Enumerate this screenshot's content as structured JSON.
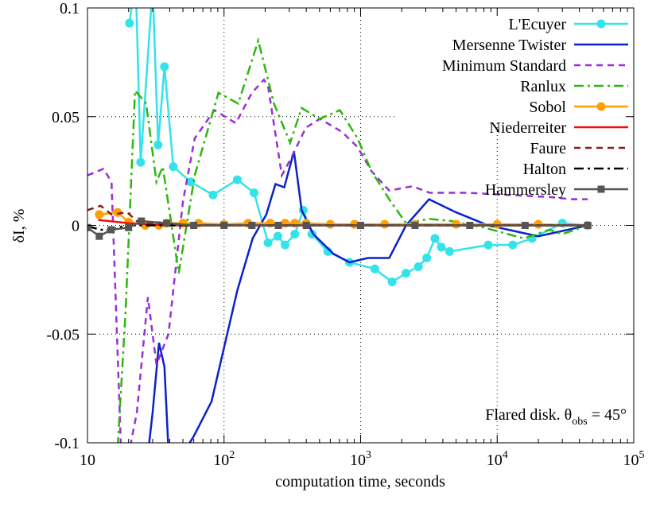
{
  "chart_data": {
    "type": "line",
    "xlabel": "computation time, seconds",
    "ylabel": "δI, %",
    "annotation": {
      "text": "Flared disk. θ",
      "subscript": "obs",
      "suffix": " = 45°"
    },
    "xscale": "log",
    "grid": true,
    "legend": "top-right",
    "xlim": [
      10,
      100000
    ],
    "xticks": [
      10,
      {
        "value": 100,
        "label": "10",
        "exponent": "2"
      },
      {
        "value": 1000,
        "label": "10",
        "exponent": "3"
      },
      {
        "value": 10000,
        "label": "10",
        "exponent": "4"
      },
      {
        "value": 100000,
        "label": "10",
        "exponent": "5"
      }
    ],
    "ylim": [
      -0.1,
      0.1
    ],
    "yticks": [
      -0.1,
      -0.05,
      0,
      0.05,
      0.1
    ],
    "series": [
      {
        "name": "L'Ecuyer",
        "color": "#33e3ea",
        "style": "solid",
        "marker": "circle",
        "x": [
          20.3,
          22.5,
          24.5,
          30,
          32.9,
          36.6,
          42.5,
          57,
          83,
          125,
          166,
          210,
          248,
          280,
          330,
          380,
          440,
          575,
          830,
          1270,
          1700,
          2150,
          2650,
          3050,
          3500,
          3900,
          4480,
          8600,
          13000,
          18000,
          30000,
          46000
        ],
        "values": [
          0.093,
          0.115,
          0.029,
          0.11,
          0.037,
          0.073,
          0.027,
          0.02,
          0.014,
          0.021,
          0.015,
          -0.008,
          -0.005,
          -0.009,
          -0.004,
          0.007,
          -0.004,
          -0.012,
          -0.017,
          -0.02,
          -0.026,
          -0.022,
          -0.019,
          -0.015,
          -0.006,
          -0.01,
          -0.012,
          -0.009,
          -0.009,
          -0.006,
          0.001,
          0
        ]
      },
      {
        "name": "Mersenne Twister",
        "color": "#0a22cc",
        "style": "solid",
        "marker": "none",
        "x": [
          25,
          30,
          33.4,
          36.6,
          40,
          50,
          60,
          81,
          125,
          162,
          204,
          238,
          276,
          325,
          370,
          450,
          630,
          830,
          1130,
          1620,
          2150,
          3170,
          5000,
          8600,
          20000,
          46000
        ],
        "values": [
          -0.13,
          -0.086,
          -0.054,
          -0.065,
          -0.115,
          -0.105,
          -0.097,
          -0.081,
          -0.03,
          -0.006,
          0.005,
          0.019,
          0.0175,
          0.034,
          0.007,
          -0.004,
          -0.013,
          -0.017,
          -0.015,
          -0.015,
          0,
          0.012,
          0.006,
          0,
          -0.005,
          0
        ]
      },
      {
        "name": "Minimum Standard",
        "color": "#9a2fd4",
        "style": "dashed",
        "marker": "none",
        "x": [
          10,
          13.1,
          15,
          18,
          23,
          27.7,
          32,
          39.2,
          50,
          61,
          85,
          122,
          160,
          196,
          210,
          265,
          310,
          398,
          505,
          730,
          950,
          1200,
          1620,
          2400,
          3200,
          6000,
          12000,
          25000,
          35000,
          46000
        ],
        "values": [
          0.023,
          0.026,
          0.02,
          -0.12,
          -0.086,
          -0.033,
          -0.064,
          -0.05,
          0.011,
          0.04,
          0.053,
          0.047,
          0.061,
          0.067,
          0.064,
          0.023,
          0.031,
          0.045,
          0.049,
          0.043,
          0.036,
          0.025,
          0.016,
          0.018,
          0.015,
          0.015,
          0.014,
          0.013,
          0.012,
          0.012
        ]
      },
      {
        "name": "Ranlux",
        "color": "#2cb80c",
        "style": "dashdot",
        "marker": "none",
        "x": [
          16,
          19,
          22.3,
          26.9,
          32,
          35.6,
          46.6,
          61,
          91,
          127,
          178,
          232,
          305,
          370,
          500,
          705,
          950,
          1200,
          1620,
          2150,
          3170,
          4600,
          8000,
          15700,
          24000,
          30000,
          46000
        ],
        "values": [
          -0.12,
          -0.04,
          0.062,
          0.056,
          0.02,
          0.027,
          -0.022,
          0.023,
          0.061,
          0.056,
          0.085,
          0.056,
          0.038,
          0.054,
          0.049,
          0.053,
          0.04,
          0.025,
          0.012,
          0.001,
          0.003,
          0.002,
          -0.001,
          -0.006,
          -0.002,
          -0.004,
          0
        ]
      },
      {
        "name": "Sobol",
        "color": "#ffa000",
        "style": "solid",
        "marker": "circle",
        "x": [
          12.2,
          16.6,
          20,
          26.5,
          33.4,
          38,
          50,
          65,
          100,
          150,
          218,
          280,
          330,
          400,
          600,
          900,
          1500,
          2500,
          5000,
          10000,
          20000,
          46000
        ],
        "values": [
          0.005,
          0.006,
          0.0015,
          0,
          0,
          0.001,
          0.001,
          0.001,
          0.0005,
          0.001,
          0.001,
          0.001,
          0.001,
          0.001,
          0.0005,
          0.0005,
          0.0005,
          0.0005,
          0.0005,
          0.0005,
          0.0005,
          0
        ]
      },
      {
        "name": "Niederreiter",
        "color": "#ee1111",
        "style": "solid",
        "marker": "none",
        "x": [
          12,
          20,
          40,
          100,
          1000,
          46000
        ],
        "values": [
          0.0025,
          0.001,
          0,
          0,
          0,
          0
        ]
      },
      {
        "name": "Faure",
        "color": "#8b1a1a",
        "style": "dashed",
        "marker": "none",
        "x": [
          10,
          12.5,
          15,
          19.5,
          23,
          40,
          1000,
          46000
        ],
        "values": [
          0.007,
          0.009,
          0.005,
          0.006,
          0.002,
          0,
          0,
          0
        ]
      },
      {
        "name": "Halton",
        "color": "#000000",
        "style": "dashdot",
        "marker": "none",
        "x": [
          10,
          12.5,
          15,
          19,
          30,
          1000,
          46000
        ],
        "values": [
          -0.0004,
          -0.002,
          -0.002,
          0,
          0,
          0,
          0
        ]
      },
      {
        "name": "Hammersley",
        "color": "#555555",
        "style": "solid",
        "marker": "square",
        "x": [
          10,
          12.2,
          14.9,
          20,
          24.8,
          38,
          60,
          100,
          160,
          250,
          400,
          1000,
          2500,
          6300,
          16000,
          46000
        ],
        "values": [
          -0.001,
          -0.005,
          -0.002,
          -0.001,
          0.002,
          0.001,
          0,
          0,
          0,
          0,
          0,
          0,
          0,
          0,
          0,
          0
        ]
      }
    ]
  }
}
